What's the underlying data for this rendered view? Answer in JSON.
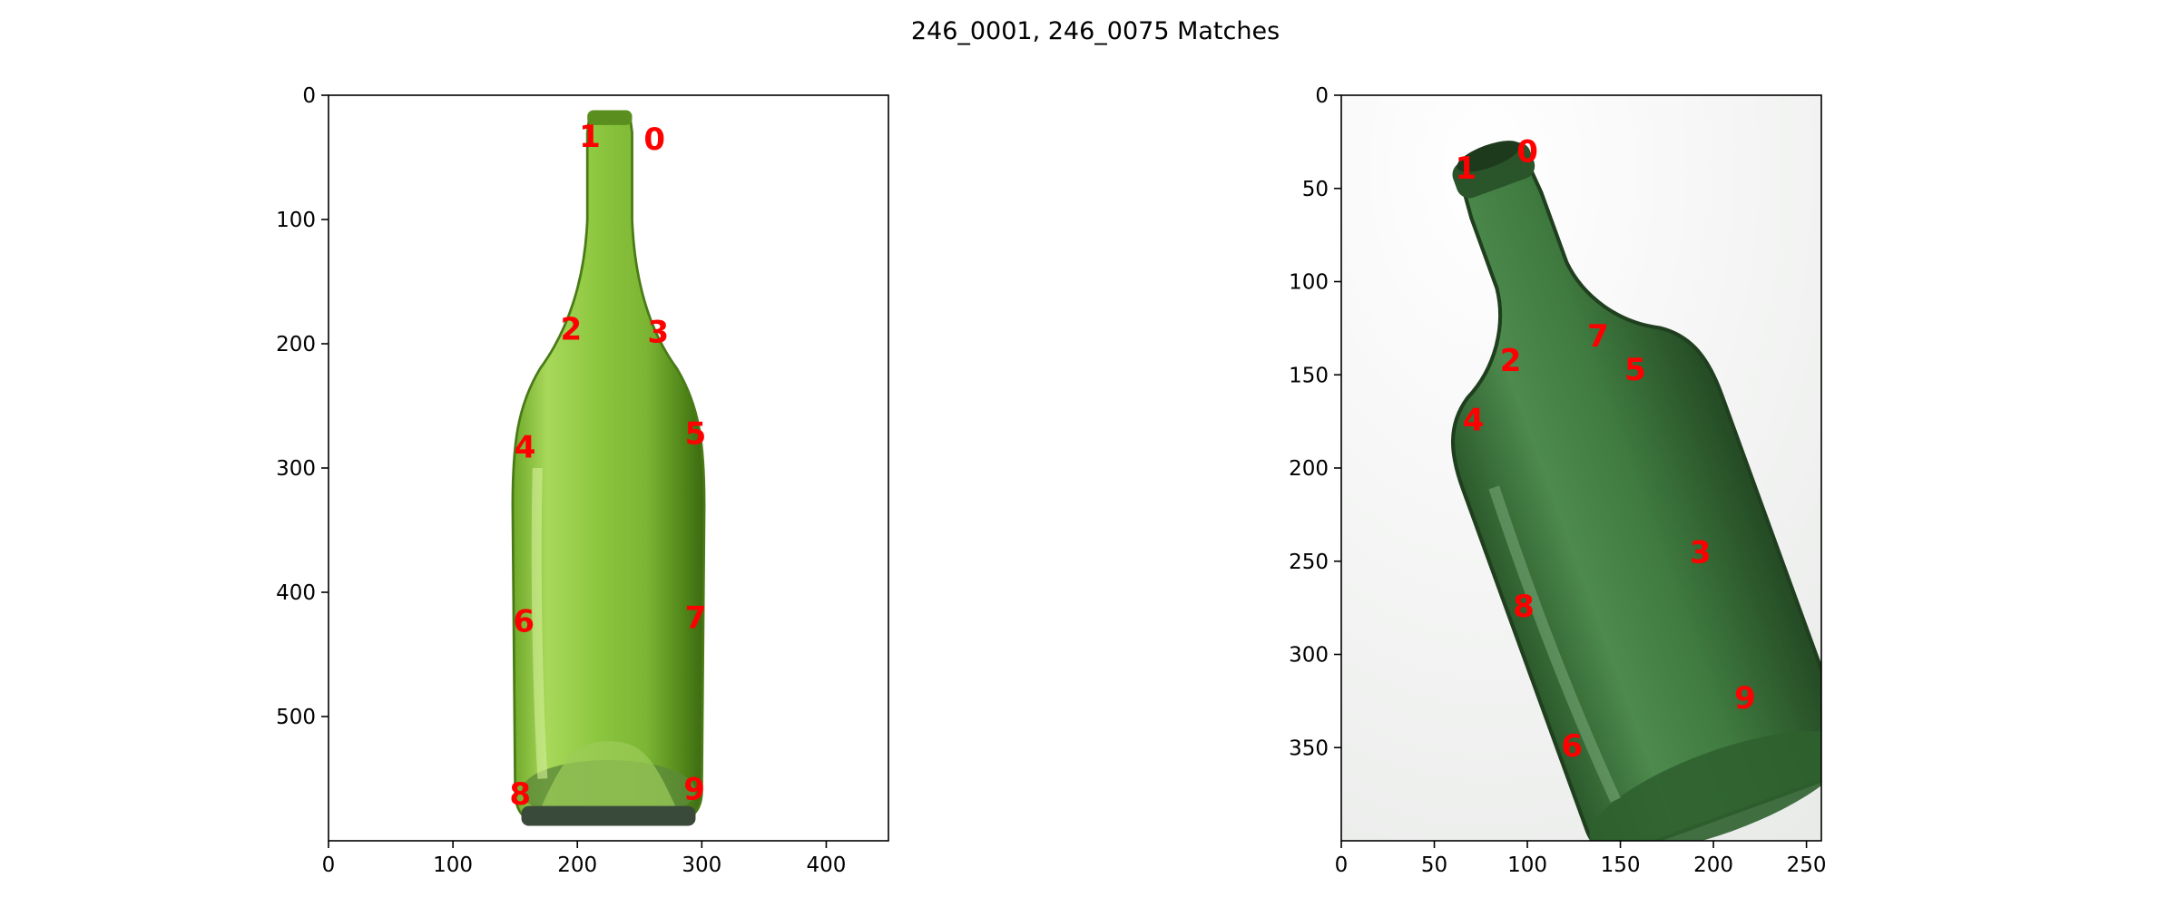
{
  "chart_data": {
    "type": "scatter",
    "title": "246_0001, 246_0075 Matches",
    "panels": [
      {
        "name": "left",
        "xlim": [
          0,
          450
        ],
        "ylim": [
          600,
          0
        ],
        "x_ticks": [
          0,
          100,
          200,
          300,
          400
        ],
        "y_ticks": [
          0,
          100,
          200,
          300,
          400,
          500
        ],
        "image": "upright green wine bottle",
        "image_colors": {
          "glass": "#8cc63f",
          "glass_dark": "#5a8f1f",
          "glass_light": "#b5de6b",
          "base": "#3a4a3a"
        },
        "points": [
          {
            "label": "0",
            "x": 262,
            "y": 35
          },
          {
            "label": "1",
            "x": 210,
            "y": 33
          },
          {
            "label": "2",
            "x": 195,
            "y": 188
          },
          {
            "label": "3",
            "x": 265,
            "y": 190
          },
          {
            "label": "4",
            "x": 158,
            "y": 283
          },
          {
            "label": "5",
            "x": 295,
            "y": 272
          },
          {
            "label": "6",
            "x": 157,
            "y": 423
          },
          {
            "label": "7",
            "x": 295,
            "y": 420
          },
          {
            "label": "8",
            "x": 154,
            "y": 562
          },
          {
            "label": "9",
            "x": 294,
            "y": 558
          }
        ]
      },
      {
        "name": "right",
        "xlim": [
          0,
          258
        ],
        "ylim": [
          400,
          0
        ],
        "x_ticks": [
          0,
          50,
          100,
          150,
          200,
          250
        ],
        "y_ticks": [
          0,
          50,
          100,
          150,
          200,
          250,
          300,
          350
        ],
        "image": "tilted dark green bottle",
        "image_colors": {
          "glass": "#3f7a3f",
          "glass_dark": "#2a542a",
          "glass_light": "#5f9a5f",
          "background": "#f0f0f0"
        },
        "points": [
          {
            "label": "0",
            "x": 100,
            "y": 30
          },
          {
            "label": "1",
            "x": 67,
            "y": 39
          },
          {
            "label": "2",
            "x": 91,
            "y": 142
          },
          {
            "label": "3",
            "x": 193,
            "y": 245
          },
          {
            "label": "4",
            "x": 71,
            "y": 174
          },
          {
            "label": "5",
            "x": 158,
            "y": 147
          },
          {
            "label": "6",
            "x": 124,
            "y": 349
          },
          {
            "label": "7",
            "x": 138,
            "y": 129
          },
          {
            "label": "8",
            "x": 98,
            "y": 274
          },
          {
            "label": "9",
            "x": 217,
            "y": 323
          }
        ]
      }
    ]
  }
}
